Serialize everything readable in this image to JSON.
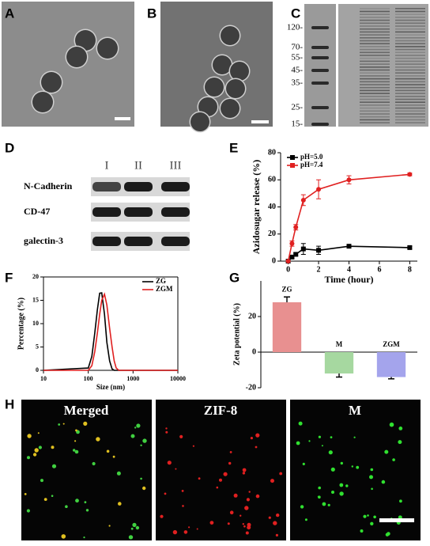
{
  "panel_labels": [
    "A",
    "B",
    "C",
    "D",
    "E",
    "F",
    "G",
    "H"
  ],
  "gel": {
    "markers": [
      "120-",
      "70-",
      "55-",
      "45-",
      "35-",
      "25-",
      "15-"
    ]
  },
  "western": {
    "lanes": [
      "I",
      "II",
      "III"
    ],
    "proteins": [
      "N-Cadherin",
      "CD-47",
      "galectin-3"
    ]
  },
  "fluorescence": {
    "channels": [
      "Merged",
      "ZIF-8",
      "M"
    ]
  },
  "chart_data": [
    {
      "type": "line",
      "x_label": "Time (hour)",
      "y_label": "Azidosugar release (%)",
      "legend": "upper-left",
      "markers": true,
      "x": [
        0,
        0.25,
        0.5,
        1,
        2,
        4,
        8
      ],
      "xlim": [
        -0.5,
        8.5
      ],
      "xticks": [
        0,
        2,
        4,
        6,
        8
      ],
      "ylim": [
        0,
        80
      ],
      "yticks": [
        0,
        20,
        40,
        60,
        80
      ],
      "series": [
        {
          "name": "pH=5.0",
          "color": "#000000",
          "values": [
            0,
            3,
            5,
            9,
            8,
            11,
            10
          ],
          "errors": [
            0,
            1,
            1,
            4,
            3,
            1,
            1
          ]
        },
        {
          "name": "pH=7.4",
          "color": "#e02020",
          "values": [
            0,
            13,
            25,
            45,
            53,
            60,
            64
          ],
          "errors": [
            0,
            2,
            2,
            4,
            7,
            3,
            1
          ]
        }
      ]
    },
    {
      "type": "line",
      "x_label": "Size (nm)",
      "y_label": "Percentage (%)",
      "legend": "upper-right",
      "log_x": true,
      "markers": false,
      "x": [
        10,
        100,
        120,
        140,
        160,
        180,
        200,
        230,
        260,
        300,
        340,
        380,
        420,
        480,
        10000
      ],
      "xlim": [
        10,
        10000
      ],
      "xticks": [
        10,
        100,
        1000,
        10000
      ],
      "ylim": [
        0,
        20
      ],
      "yticks": [
        0,
        5,
        10,
        15,
        20
      ],
      "series": [
        {
          "name": "ZG",
          "color": "#000000",
          "values": [
            0,
            0.5,
            3,
            8,
            13,
            16.5,
            16.6,
            12,
            6,
            2,
            0.3,
            0,
            0,
            0,
            0
          ]
        },
        {
          "name": "ZGM",
          "color": "#e02020",
          "values": [
            0,
            0,
            1,
            4,
            8,
            12,
            15,
            16.3,
            14,
            9,
            5,
            2,
            0.5,
            0,
            0
          ]
        }
      ]
    },
    {
      "type": "bar",
      "y_label": "Zeta potential (%)",
      "categories": [
        "ZG",
        "M",
        "ZGM"
      ],
      "values": [
        28,
        -12,
        -14
      ],
      "errors": [
        3,
        2,
        1
      ],
      "colors": [
        "#e89090",
        "#a6d8a0",
        "#a4a4ec"
      ],
      "ylim": [
        -20,
        40
      ],
      "yticks": [
        -20,
        0,
        20
      ]
    }
  ]
}
